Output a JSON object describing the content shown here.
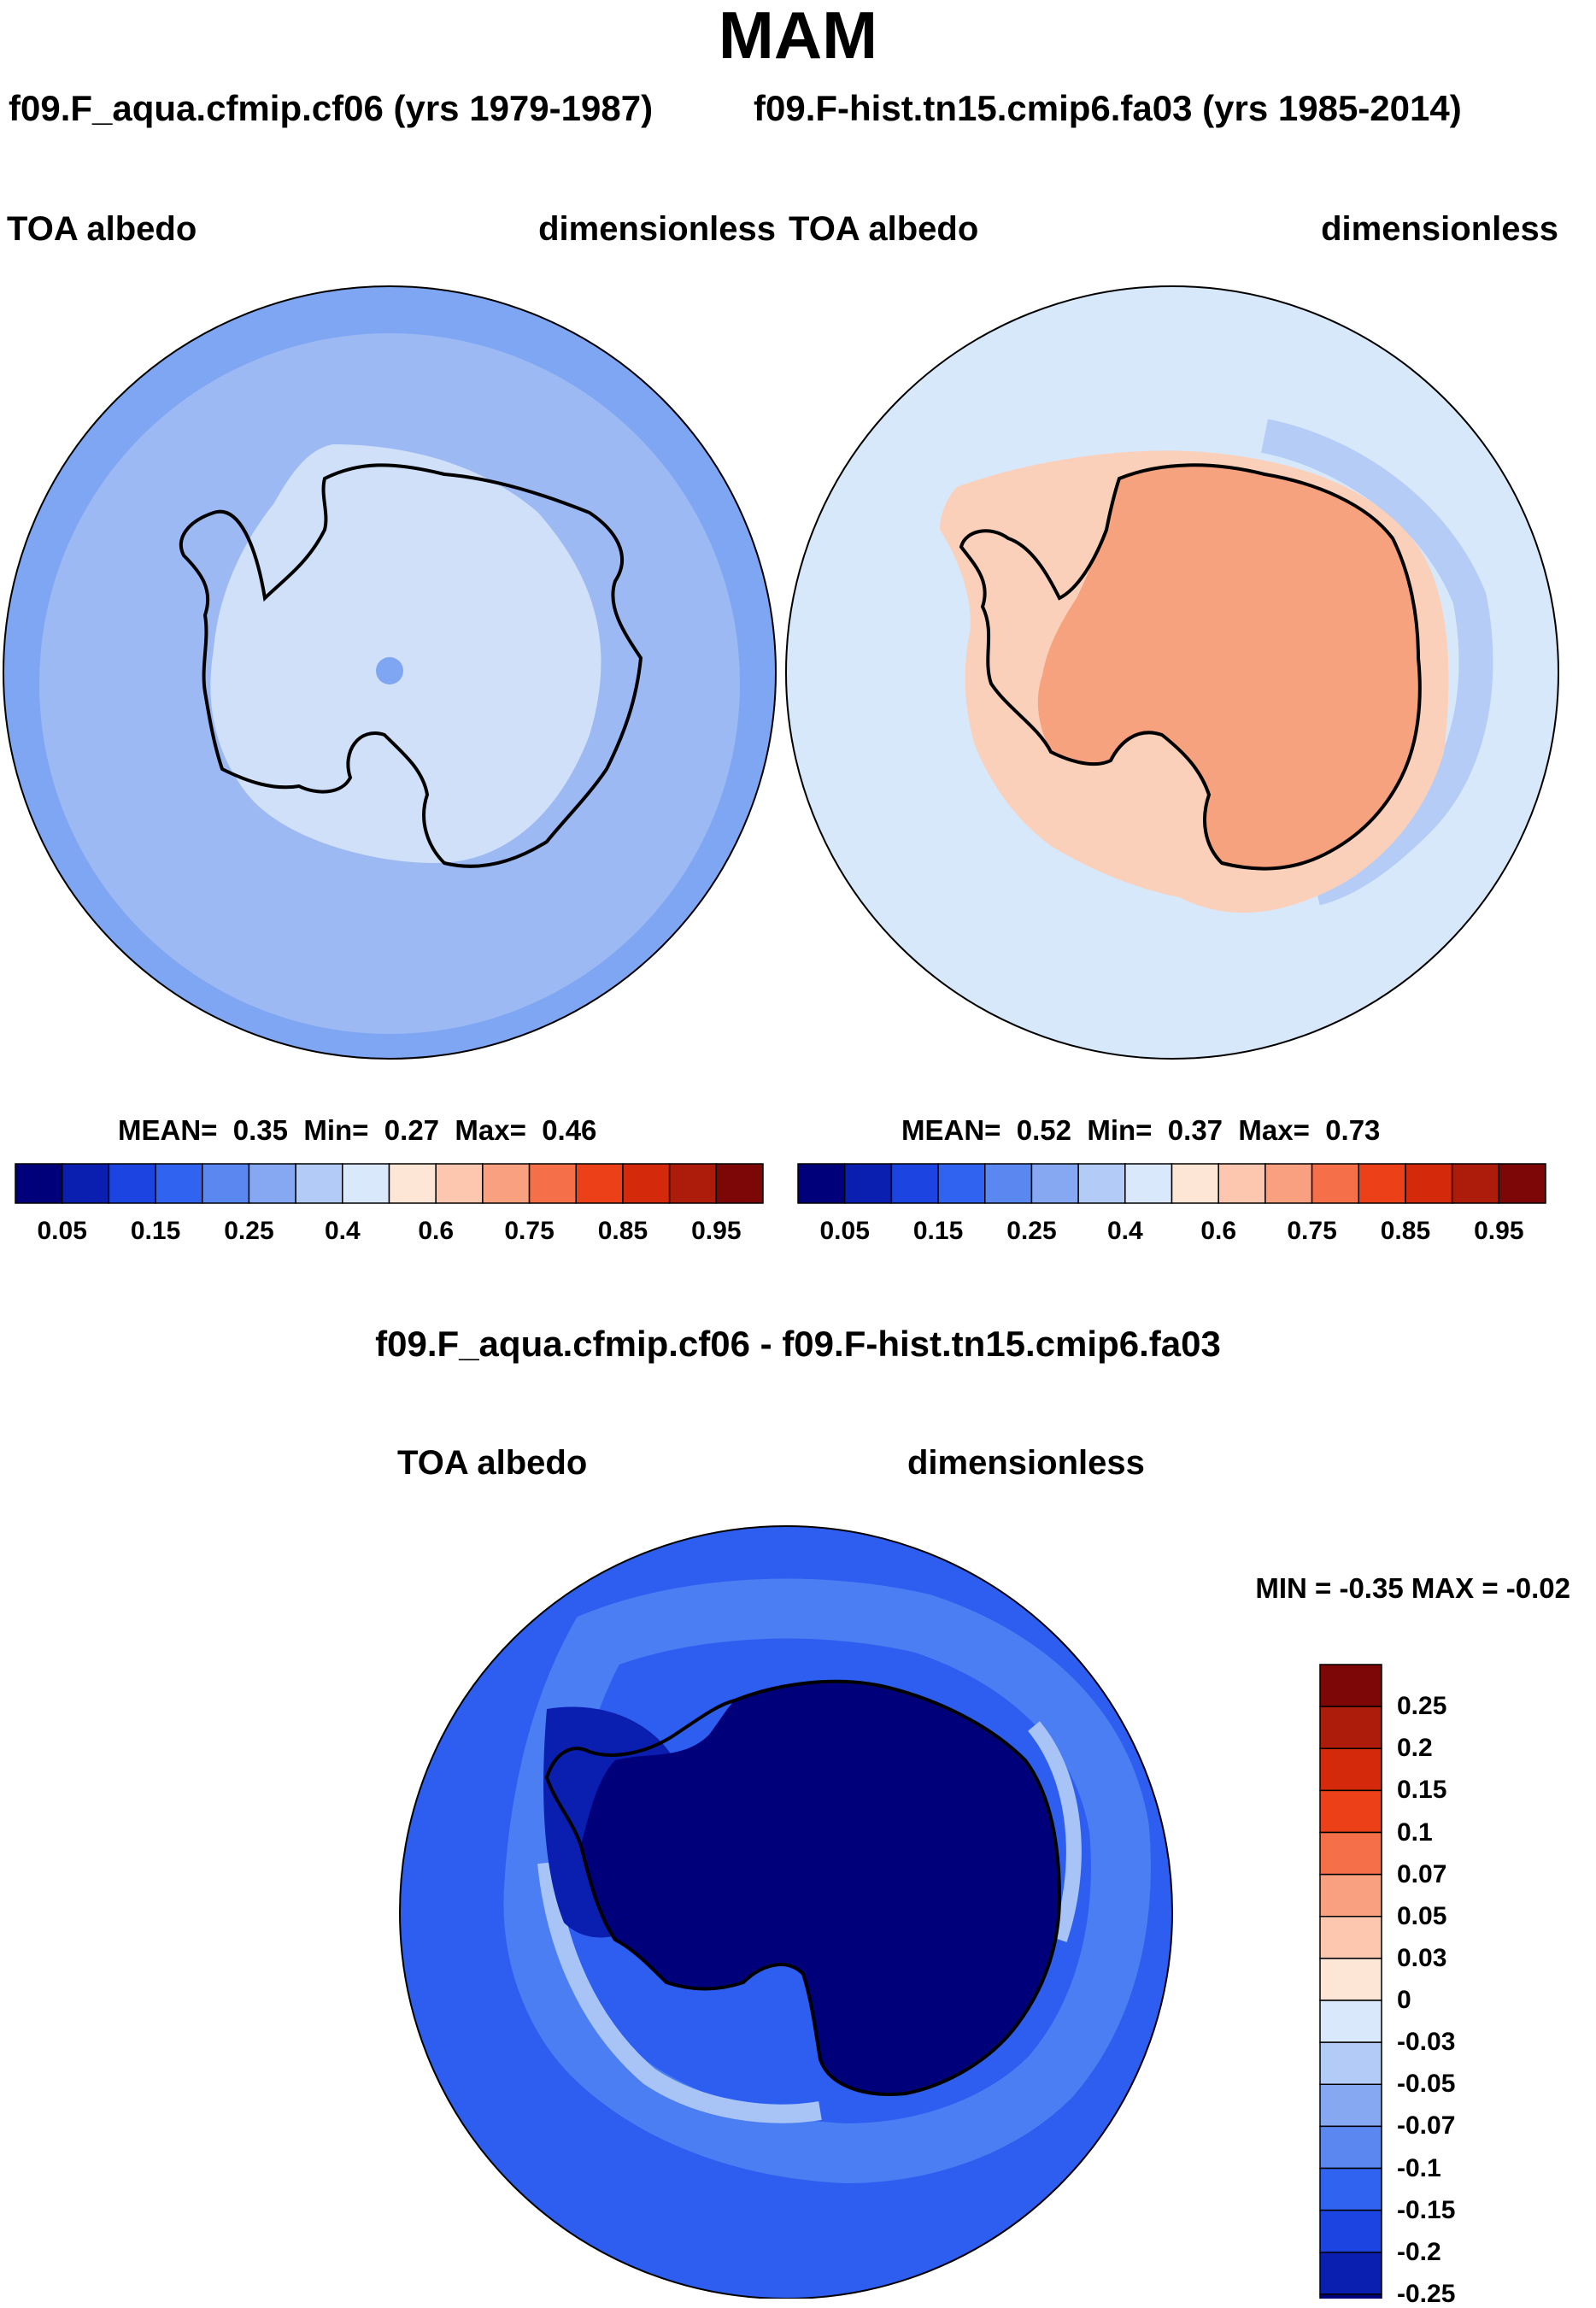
{
  "title": "MAM",
  "panels": [
    {
      "case": "f09.F_aqua.cfmip.cf06 (yrs 1979-1987)",
      "variable": "TOA albedo",
      "units": "dimensionless",
      "stats": {
        "mean_label": "MEAN=",
        "mean": "0.35",
        "min_label": "Min=",
        "min": "0.27",
        "max_label": "Max=",
        "max": "0.46"
      },
      "map": {
        "ocean": "#9cb9f3",
        "ring": "#7fa6f2",
        "ice": "#cfe0f8",
        "continent": "#d6e6fa"
      }
    },
    {
      "case": "f09.F-hist.tn15.cmip6.fa03 (yrs 1985-2014)",
      "variable": "TOA albedo",
      "units": "dimensionless",
      "stats": {
        "mean_label": "MEAN=",
        "mean": "0.52",
        "min_label": "Min=",
        "min": "0.37",
        "max_label": "Max=",
        "max": "0.73"
      },
      "map": {
        "ocean": "#d8e8fb",
        "ring": "#b5cdf6",
        "ice": "#fbd0ba",
        "continent": "#f6a27f"
      }
    }
  ],
  "abs_colorbar": {
    "colors": [
      "#00007a",
      "#0a1fb0",
      "#1c44e0",
      "#2f63f0",
      "#5b87f0",
      "#86a8f3",
      "#b3cbf7",
      "#d9e8fb",
      "#fde6d6",
      "#fcc7ae",
      "#f8a07f",
      "#f56f48",
      "#ec4118",
      "#d42a0b",
      "#ad1b0a",
      "#7d0606"
    ],
    "ticks": [
      "0.05",
      "0.15",
      "0.25",
      "0.4",
      "0.6",
      "0.75",
      "0.85",
      "0.95"
    ]
  },
  "diff": {
    "title": "f09.F_aqua.cfmip.cf06 - f09.F-hist.tn15.cmip6.fa03",
    "variable": "TOA albedo",
    "units": "dimensionless",
    "minmax": "MIN =  -0.35 MAX =  -0.02",
    "map": {
      "ocean": "#2d5ef0",
      "ring": "#4a7ef2",
      "light": "#a8c4f6",
      "continent": "#00007a",
      "shelf": "#0a1fb0"
    },
    "colorbar": {
      "colors_top_to_bottom": [
        "#7d0606",
        "#ad1b0a",
        "#d42a0b",
        "#ec4118",
        "#f56f48",
        "#f8a07f",
        "#fcc7ae",
        "#fde6d6",
        "#d9e8fb",
        "#b3cbf7",
        "#86a8f3",
        "#5b87f0",
        "#2f63f0",
        "#1c44e0",
        "#0a1fb0",
        "#00007a"
      ],
      "ticks": [
        "0.25",
        "0.2",
        "0.15",
        "0.1",
        "0.07",
        "0.05",
        "0.03",
        "0",
        "-0.03",
        "-0.05",
        "-0.07",
        "-0.1",
        "-0.15",
        "-0.2",
        "-0.25"
      ]
    }
  }
}
